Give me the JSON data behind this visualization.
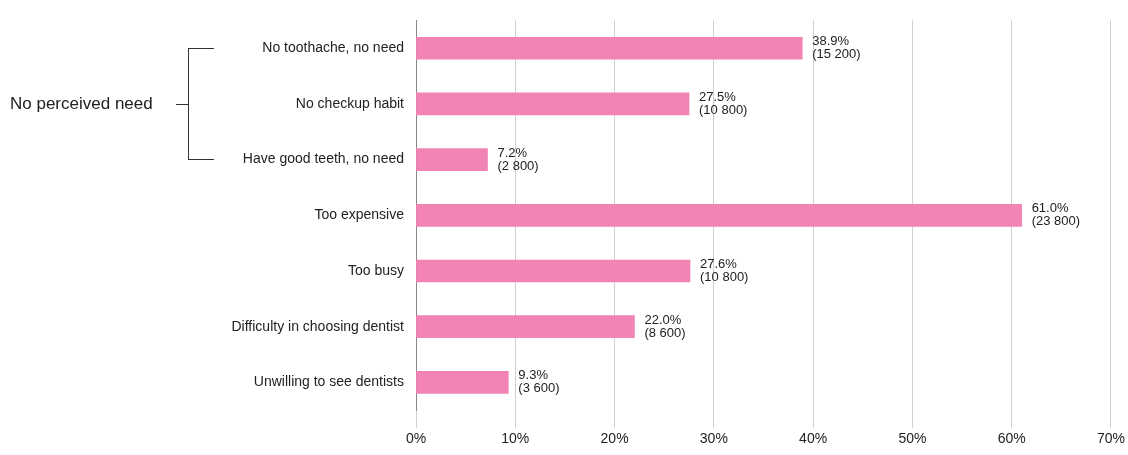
{
  "chart_data": {
    "type": "bar",
    "orientation": "horizontal",
    "categories": [
      "No toothache, no need",
      "No checkup habit",
      "Have good teeth, no need",
      "Too expensive",
      "Too busy",
      "Difficulty in choosing dentist",
      "Unwilling to see dentists"
    ],
    "values": [
      38.9,
      27.5,
      7.2,
      61.0,
      27.6,
      22.0,
      9.3
    ],
    "value_labels": [
      "38.9%\n(15 200)",
      "27.5%\n(10 800)",
      "7.2%\n(2 800)",
      "61.0%\n(23 800)",
      "27.6%\n(10 800)",
      "22.0%\n(8 600)",
      "9.3%\n(3 600)"
    ],
    "color": "#f283b5",
    "xlim": [
      0,
      70
    ],
    "xticks": [
      {
        "value": 0,
        "label": "0%"
      },
      {
        "value": 10,
        "label": "10%"
      },
      {
        "value": 20,
        "label": "20%"
      },
      {
        "value": 30,
        "label": "30%"
      },
      {
        "value": 40,
        "label": "40%"
      },
      {
        "value": 50,
        "label": "50%"
      },
      {
        "value": 60,
        "label": "60%"
      },
      {
        "value": 70,
        "label": "70%"
      }
    ],
    "grid": "x",
    "legend": false,
    "annotations": [
      "No perceived need"
    ]
  }
}
